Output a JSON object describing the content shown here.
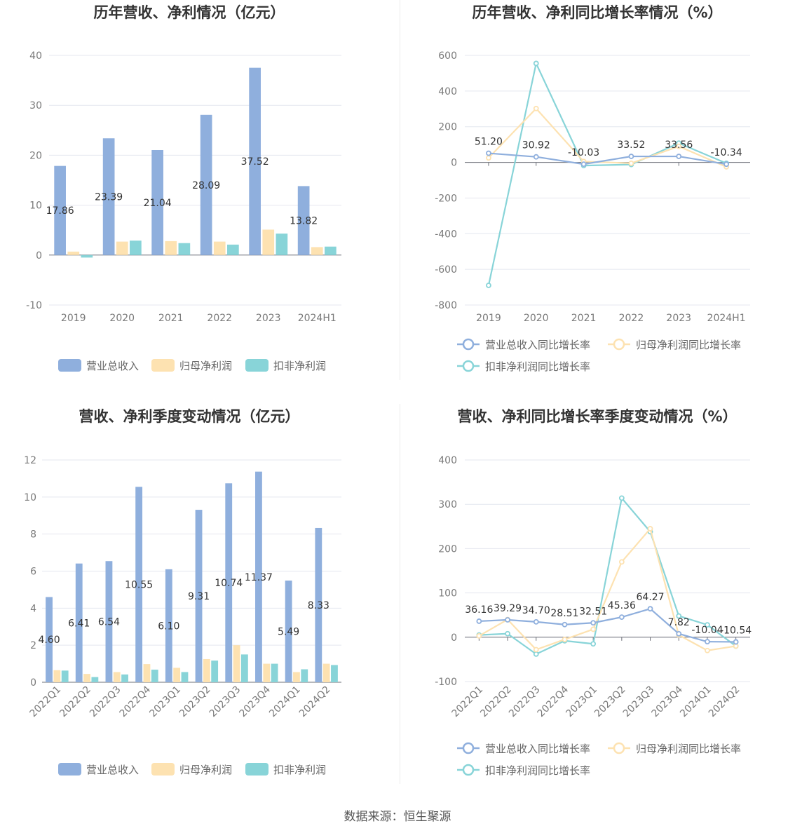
{
  "source_text": "数据来源：恒生聚源",
  "chart_data": [
    {
      "id": "annual_values",
      "type": "bar",
      "title": "历年营收、净利情况（亿元）",
      "categories": [
        "2019",
        "2020",
        "2021",
        "2022",
        "2023",
        "2024H1"
      ],
      "y_ticks": [
        "40",
        "30",
        "20",
        "10",
        "0",
        "-10"
      ],
      "ylim": [
        -10,
        40
      ],
      "series": [
        {
          "name": "营业总收入",
          "color": "#8fafdd",
          "values": [
            17.86,
            23.39,
            21.04,
            28.09,
            37.52,
            13.82
          ],
          "labels": [
            "17.86",
            "23.39",
            "21.04",
            "28.09",
            "37.52",
            "13.82"
          ]
        },
        {
          "name": "归母净利润",
          "color": "#fde2b1",
          "values": [
            0.7,
            2.7,
            2.8,
            2.7,
            5.1,
            1.6
          ]
        },
        {
          "name": "扣非净利润",
          "color": "#88d4d8",
          "values": [
            -0.5,
            2.9,
            2.4,
            2.1,
            4.3,
            1.7
          ]
        }
      ]
    },
    {
      "id": "annual_growth",
      "type": "line",
      "title": "历年营收、净利同比增长率情况（%）",
      "categories": [
        "2019",
        "2020",
        "2021",
        "2022",
        "2023",
        "2024H1"
      ],
      "y_ticks": [
        "600",
        "400",
        "200",
        "0",
        "-200",
        "-400",
        "-600",
        "-800"
      ],
      "ylim": [
        -800,
        600
      ],
      "series": [
        {
          "name": "营业总收入同比增长率",
          "color": "#8fafdd",
          "values": [
            51.2,
            30.92,
            -10.03,
            33.52,
            33.56,
            -10.34
          ],
          "labels": [
            "51.20",
            "30.92",
            "-10.03",
            "33.52",
            "33.56",
            "-10.34"
          ]
        },
        {
          "name": "归母净利润同比增长率",
          "color": "#fde2b1",
          "values": [
            25,
            302,
            5,
            -5,
            90,
            -25
          ]
        },
        {
          "name": "扣非净利润同比增长率",
          "color": "#88d4d8",
          "values": [
            -690,
            555,
            -18,
            -12,
            108,
            -5
          ]
        }
      ]
    },
    {
      "id": "quarterly_values",
      "type": "bar",
      "title": "营收、净利季度变动情况（亿元）",
      "categories": [
        "2022Q1",
        "2022Q2",
        "2022Q3",
        "2022Q4",
        "2023Q1",
        "2023Q2",
        "2023Q3",
        "2023Q4",
        "2024Q1",
        "2024Q2"
      ],
      "y_ticks": [
        "12",
        "10",
        "8",
        "6",
        "4",
        "2",
        "0"
      ],
      "ylim": [
        0,
        12
      ],
      "series": [
        {
          "name": "营业总收入",
          "color": "#8fafdd",
          "values": [
            4.6,
            6.41,
            6.54,
            10.55,
            6.1,
            9.31,
            10.74,
            11.37,
            5.49,
            8.33
          ],
          "labels": [
            "4.60",
            "6.41",
            "6.54",
            "10.55",
            "6.10",
            "9.31",
            "10.74",
            "11.37",
            "5.49",
            "8.33"
          ]
        },
        {
          "name": "归母净利润",
          "color": "#fde2b1",
          "values": [
            0.65,
            0.45,
            0.55,
            0.98,
            0.78,
            1.25,
            2.0,
            1.0,
            0.55,
            1.0
          ]
        },
        {
          "name": "扣非净利润",
          "color": "#88d4d8",
          "values": [
            0.63,
            0.28,
            0.42,
            0.68,
            0.55,
            1.17,
            1.5,
            1.0,
            0.7,
            0.93
          ]
        }
      ]
    },
    {
      "id": "quarterly_growth",
      "type": "line",
      "title": "营收、净利同比增长率季度变动情况（%）",
      "categories": [
        "2022Q1",
        "2022Q2",
        "2022Q3",
        "2022Q4",
        "2023Q1",
        "2023Q2",
        "2023Q3",
        "2023Q4",
        "2024Q1",
        "2024Q2"
      ],
      "y_ticks": [
        "400",
        "300",
        "200",
        "100",
        "0",
        "-100"
      ],
      "ylim": [
        -100,
        400
      ],
      "series": [
        {
          "name": "营业总收入同比增长率",
          "color": "#8fafdd",
          "values": [
            36.16,
            39.29,
            34.7,
            28.51,
            32.51,
            45.36,
            64.27,
            7.82,
            -10.04,
            -10.54
          ],
          "labels": [
            "36.16",
            "39.29",
            "34.70",
            "28.51",
            "32.51",
            "45.36",
            "64.27",
            "7.82",
            "-10.04",
            "-10.54"
          ]
        },
        {
          "name": "归母净利润同比增长率",
          "color": "#fde2b1",
          "values": [
            3,
            40,
            -28,
            -5,
            18,
            170,
            245,
            5,
            -30,
            -20
          ]
        },
        {
          "name": "扣非净利润同比增长率",
          "color": "#88d4d8",
          "values": [
            5,
            8,
            -38,
            -8,
            -15,
            314,
            238,
            48,
            28,
            -20
          ]
        }
      ]
    }
  ]
}
